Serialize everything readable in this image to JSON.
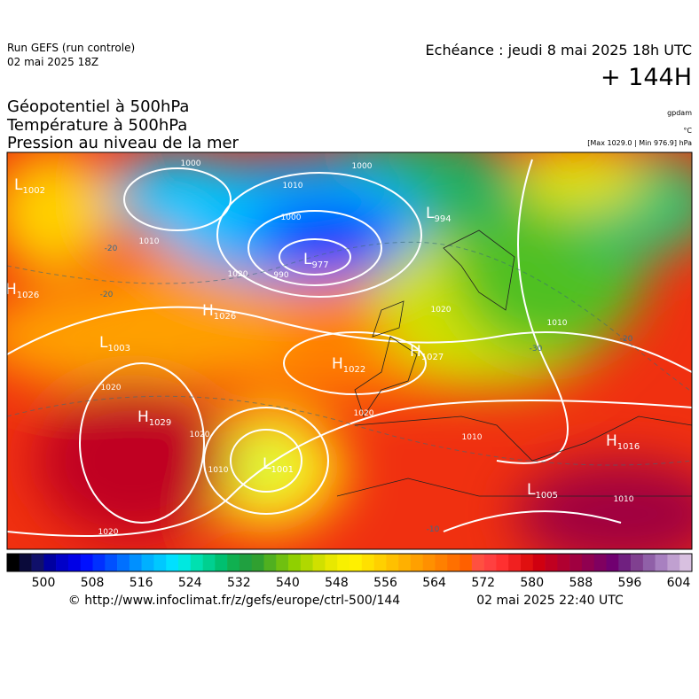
{
  "header": {
    "run": "Run GEFS (run controle)",
    "run_date": "02 mai 2025 18Z",
    "echeance": "Echéance : jeudi 8 mai 2025 18h UTC",
    "lead": "+ 144H",
    "fields": [
      "Géopotentiel à 500hPa",
      "Température à 500hPa",
      "Pression au niveau de la mer"
    ],
    "unit_geo": "gpdam",
    "unit_temp": "°C",
    "pressure_range": "[Max 1029.0 | Min 976.9] hPa"
  },
  "map": {
    "centers": [
      {
        "kind": "L",
        "value": 1002
      },
      {
        "kind": "H",
        "value": 1026
      },
      {
        "kind": "H",
        "value": 1026
      },
      {
        "kind": "L",
        "value": 1003
      },
      {
        "kind": "L",
        "value": 977
      },
      {
        "kind": "L",
        "value": 994
      },
      {
        "kind": "H",
        "value": 1022
      },
      {
        "kind": "H",
        "value": 1027
      },
      {
        "kind": "H",
        "value": 1029
      },
      {
        "kind": "L",
        "value": 1001
      },
      {
        "kind": "H",
        "value": 1016
      },
      {
        "kind": "L",
        "value": 1005
      }
    ],
    "isobar_labels": [
      1000,
      1000,
      1010,
      1000,
      1010,
      990,
      1020,
      1020,
      1020,
      1010,
      1020,
      1020,
      1010,
      1010,
      1010,
      1020
    ],
    "temp_labels": [
      -20,
      -20,
      -20,
      -30,
      -10
    ]
  },
  "colorbar": {
    "ticks": [
      500,
      508,
      516,
      524,
      532,
      540,
      548,
      556,
      564,
      572,
      580,
      588,
      596,
      604
    ],
    "colors": [
      "#000000",
      "#0a0a3a",
      "#10106a",
      "#0000a0",
      "#0000c8",
      "#0000e6",
      "#0010ff",
      "#0030ff",
      "#0050ff",
      "#0070ff",
      "#0090ff",
      "#00b0ff",
      "#00c8ff",
      "#00e0ff",
      "#00e8e0",
      "#00e0b0",
      "#00d090",
      "#00c070",
      "#10b050",
      "#20a040",
      "#30a030",
      "#50b020",
      "#70c010",
      "#90d000",
      "#b0d800",
      "#d0e000",
      "#e8e800",
      "#f8f000",
      "#fff000",
      "#ffe000",
      "#ffd000",
      "#ffc000",
      "#ffb000",
      "#ffa000",
      "#ff9000",
      "#ff8000",
      "#ff7000",
      "#ff6000",
      "#ff5040",
      "#ff4040",
      "#ff3030",
      "#f02020",
      "#e01010",
      "#d00010",
      "#c00020",
      "#b00030",
      "#a00040",
      "#900050",
      "#800060",
      "#700070",
      "#702080",
      "#804090",
      "#9060a8",
      "#a880c0",
      "#c0a0d0",
      "#d8c0e0"
    ]
  },
  "footer": {
    "source": "© http://www.infoclimat.fr/z/gefs/europe/ctrl-500/144",
    "generated": "02 mai 2025 22:40 UTC"
  }
}
